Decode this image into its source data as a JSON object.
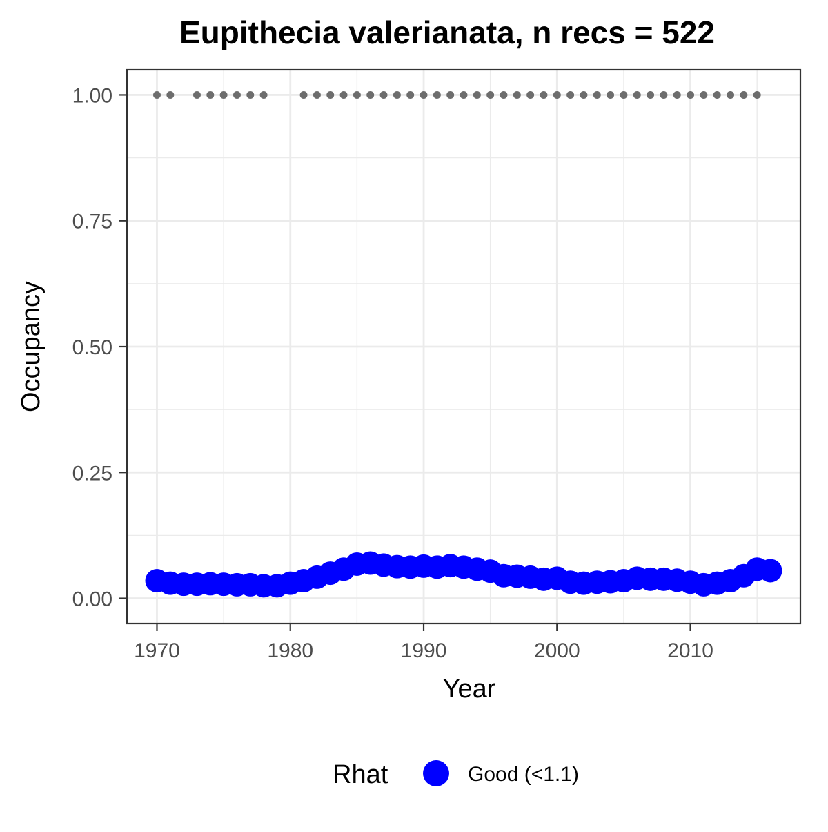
{
  "chart_data": {
    "type": "scatter",
    "title": "Eupithecia valerianata, n recs = 522",
    "xlabel": "Year",
    "ylabel": "Occupancy",
    "xlim": [
      1967.75,
      2018.25
    ],
    "ylim": [
      -0.05,
      1.05
    ],
    "x_ticks": [
      1970,
      1980,
      1990,
      2000,
      2010
    ],
    "x_tick_labels": [
      "1970",
      "1980",
      "1990",
      "2000",
      "2010"
    ],
    "x_minor_ticks": [
      1975,
      1985,
      1995,
      2005,
      2015
    ],
    "y_ticks": [
      0,
      0.25,
      0.5,
      0.75,
      1.0
    ],
    "y_tick_labels": [
      "0.00",
      "0.25",
      "0.50",
      "0.75",
      "1.00"
    ],
    "y_minor_ticks": [
      0.125,
      0.375,
      0.625,
      0.875
    ],
    "grid": true,
    "series": [
      {
        "role": "occupancy",
        "color": "#0000ff",
        "x": [
          1970,
          1971,
          1972,
          1973,
          1974,
          1975,
          1976,
          1977,
          1978,
          1979,
          1980,
          1981,
          1982,
          1983,
          1984,
          1985,
          1986,
          1987,
          1988,
          1989,
          1990,
          1991,
          1992,
          1993,
          1994,
          1995,
          1996,
          1997,
          1998,
          1999,
          2000,
          2001,
          2002,
          2003,
          2004,
          2005,
          2006,
          2007,
          2008,
          2009,
          2010,
          2011,
          2012,
          2013,
          2014,
          2015,
          2016
        ],
        "y": [
          0.035,
          0.03,
          0.028,
          0.028,
          0.029,
          0.028,
          0.027,
          0.027,
          0.025,
          0.025,
          0.03,
          0.035,
          0.042,
          0.05,
          0.058,
          0.068,
          0.07,
          0.066,
          0.063,
          0.062,
          0.064,
          0.062,
          0.065,
          0.062,
          0.058,
          0.054,
          0.045,
          0.044,
          0.042,
          0.038,
          0.04,
          0.032,
          0.03,
          0.032,
          0.033,
          0.035,
          0.04,
          0.038,
          0.038,
          0.036,
          0.032,
          0.027,
          0.03,
          0.035,
          0.045,
          0.058,
          0.055
        ]
      },
      {
        "role": "record-years",
        "color": "#6d6d6d",
        "y_value": 1.0,
        "x": [
          1970,
          1971,
          1973,
          1974,
          1975,
          1976,
          1977,
          1978,
          1981,
          1982,
          1983,
          1984,
          1985,
          1986,
          1987,
          1988,
          1989,
          1990,
          1991,
          1992,
          1993,
          1994,
          1995,
          1996,
          1997,
          1998,
          1999,
          2000,
          2001,
          2002,
          2003,
          2004,
          2005,
          2006,
          2007,
          2008,
          2009,
          2010,
          2011,
          2012,
          2013,
          2014,
          2015
        ]
      }
    ],
    "legend": {
      "title": "Rhat",
      "position": "bottom",
      "items": [
        {
          "label": "Good (<1.1)",
          "color": "#0000ff"
        }
      ]
    }
  }
}
